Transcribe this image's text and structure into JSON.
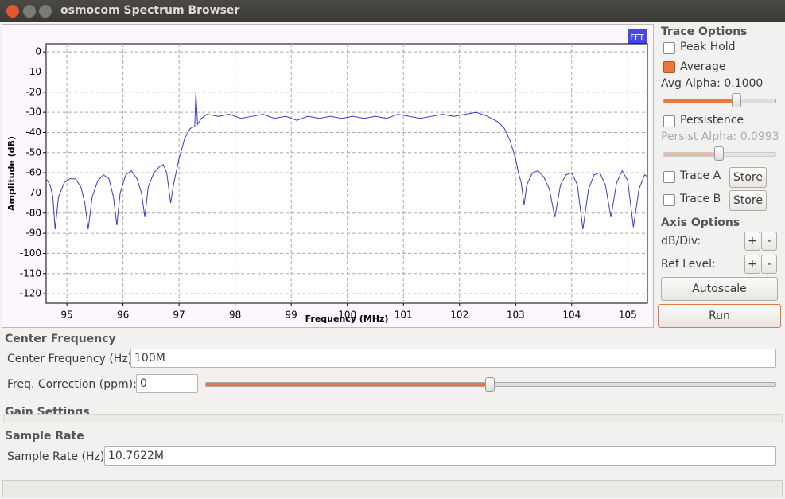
{
  "window": {
    "title": "osmocom Spectrum Browser"
  },
  "chart_data": {
    "type": "line",
    "badge": "FFT",
    "y_label": "Amplitude (dB)",
    "x_label": "Frequency (MHz)",
    "color": "#3a3acc",
    "grid": true,
    "xlim": [
      94.63,
      105.35
    ],
    "ylim": [
      -124.7,
      4
    ],
    "xticks": [
      95,
      96,
      97,
      98,
      99,
      100,
      101,
      102,
      103,
      104,
      105
    ],
    "yticks": [
      0,
      -10,
      -20,
      -30,
      -40,
      -50,
      -60,
      -70,
      -80,
      -90,
      -100,
      -110,
      -120
    ],
    "x": [
      94.63,
      94.7,
      94.75,
      94.79,
      94.85,
      94.95,
      95.05,
      95.15,
      95.25,
      95.32,
      95.38,
      95.45,
      95.55,
      95.65,
      95.75,
      95.83,
      95.89,
      95.95,
      96.05,
      96.15,
      96.25,
      96.33,
      96.39,
      96.45,
      96.55,
      96.65,
      96.72,
      96.78,
      96.85,
      96.9,
      97.0,
      97.1,
      97.2,
      97.28,
      97.3,
      97.33,
      97.4,
      97.5,
      97.7,
      97.9,
      98.1,
      98.3,
      98.5,
      98.7,
      98.9,
      99.1,
      99.3,
      99.5,
      99.7,
      99.9,
      100.1,
      100.3,
      100.5,
      100.7,
      100.9,
      101.1,
      101.3,
      101.5,
      101.7,
      101.9,
      102.1,
      102.3,
      102.5,
      102.7,
      102.8,
      102.9,
      103.0,
      103.05,
      103.1,
      103.15,
      103.2,
      103.3,
      103.4,
      103.5,
      103.6,
      103.7,
      103.8,
      103.9,
      104.0,
      104.1,
      104.2,
      104.3,
      104.4,
      104.5,
      104.6,
      104.7,
      104.8,
      104.9,
      105.0,
      105.1,
      105.2,
      105.3,
      105.35
    ],
    "values": [
      -63,
      -66,
      -72,
      -88,
      -72,
      -65,
      -63,
      -63,
      -67,
      -75,
      -88,
      -72,
      -64,
      -61,
      -63,
      -72,
      -86,
      -70,
      -61,
      -59,
      -63,
      -70,
      -82,
      -67,
      -60,
      -57,
      -56,
      -60,
      -75,
      -66,
      -53,
      -43,
      -38,
      -37,
      -20,
      -36,
      -33,
      -31,
      -32,
      -31,
      -33,
      -32,
      -31,
      -33,
      -32,
      -34,
      -32,
      -33,
      -32,
      -33,
      -32,
      -33,
      -32,
      -33,
      -31,
      -32,
      -33,
      -32,
      -31,
      -32,
      -31,
      -30,
      -32,
      -35,
      -38,
      -44,
      -53,
      -60,
      -65,
      -76,
      -66,
      -60,
      -59,
      -62,
      -68,
      -82,
      -66,
      -61,
      -60,
      -66,
      -88,
      -68,
      -61,
      -60,
      -66,
      -82,
      -65,
      -59,
      -64,
      -87,
      -68,
      -61,
      -62
    ]
  },
  "trace_options": {
    "title": "Trace Options",
    "peak_hold": "Peak Hold",
    "average": "Average",
    "avg_alpha": "Avg Alpha: 0.1000",
    "persistence": "Persistence",
    "persist_alpha": "Persist Alpha: 0.0993",
    "trace_a": "Trace A",
    "trace_b": "Trace B",
    "store": "Store"
  },
  "axis_options": {
    "title": "Axis Options",
    "db_div": "dB/Div:",
    "ref_level": "Ref Level:",
    "plus": "+",
    "minus": "-",
    "autoscale": "Autoscale"
  },
  "run": "Run",
  "center_frequency": {
    "title": "Center Frequency",
    "label": "Center Frequency (Hz):",
    "value": "100M",
    "correction_label": "Freq. Correction (ppm):",
    "correction_value": "0"
  },
  "gain_settings": {
    "title": "Gain Settings"
  },
  "sample_rate": {
    "title": "Sample Rate",
    "label": "Sample Rate (Hz):",
    "value": "10.7622M"
  }
}
